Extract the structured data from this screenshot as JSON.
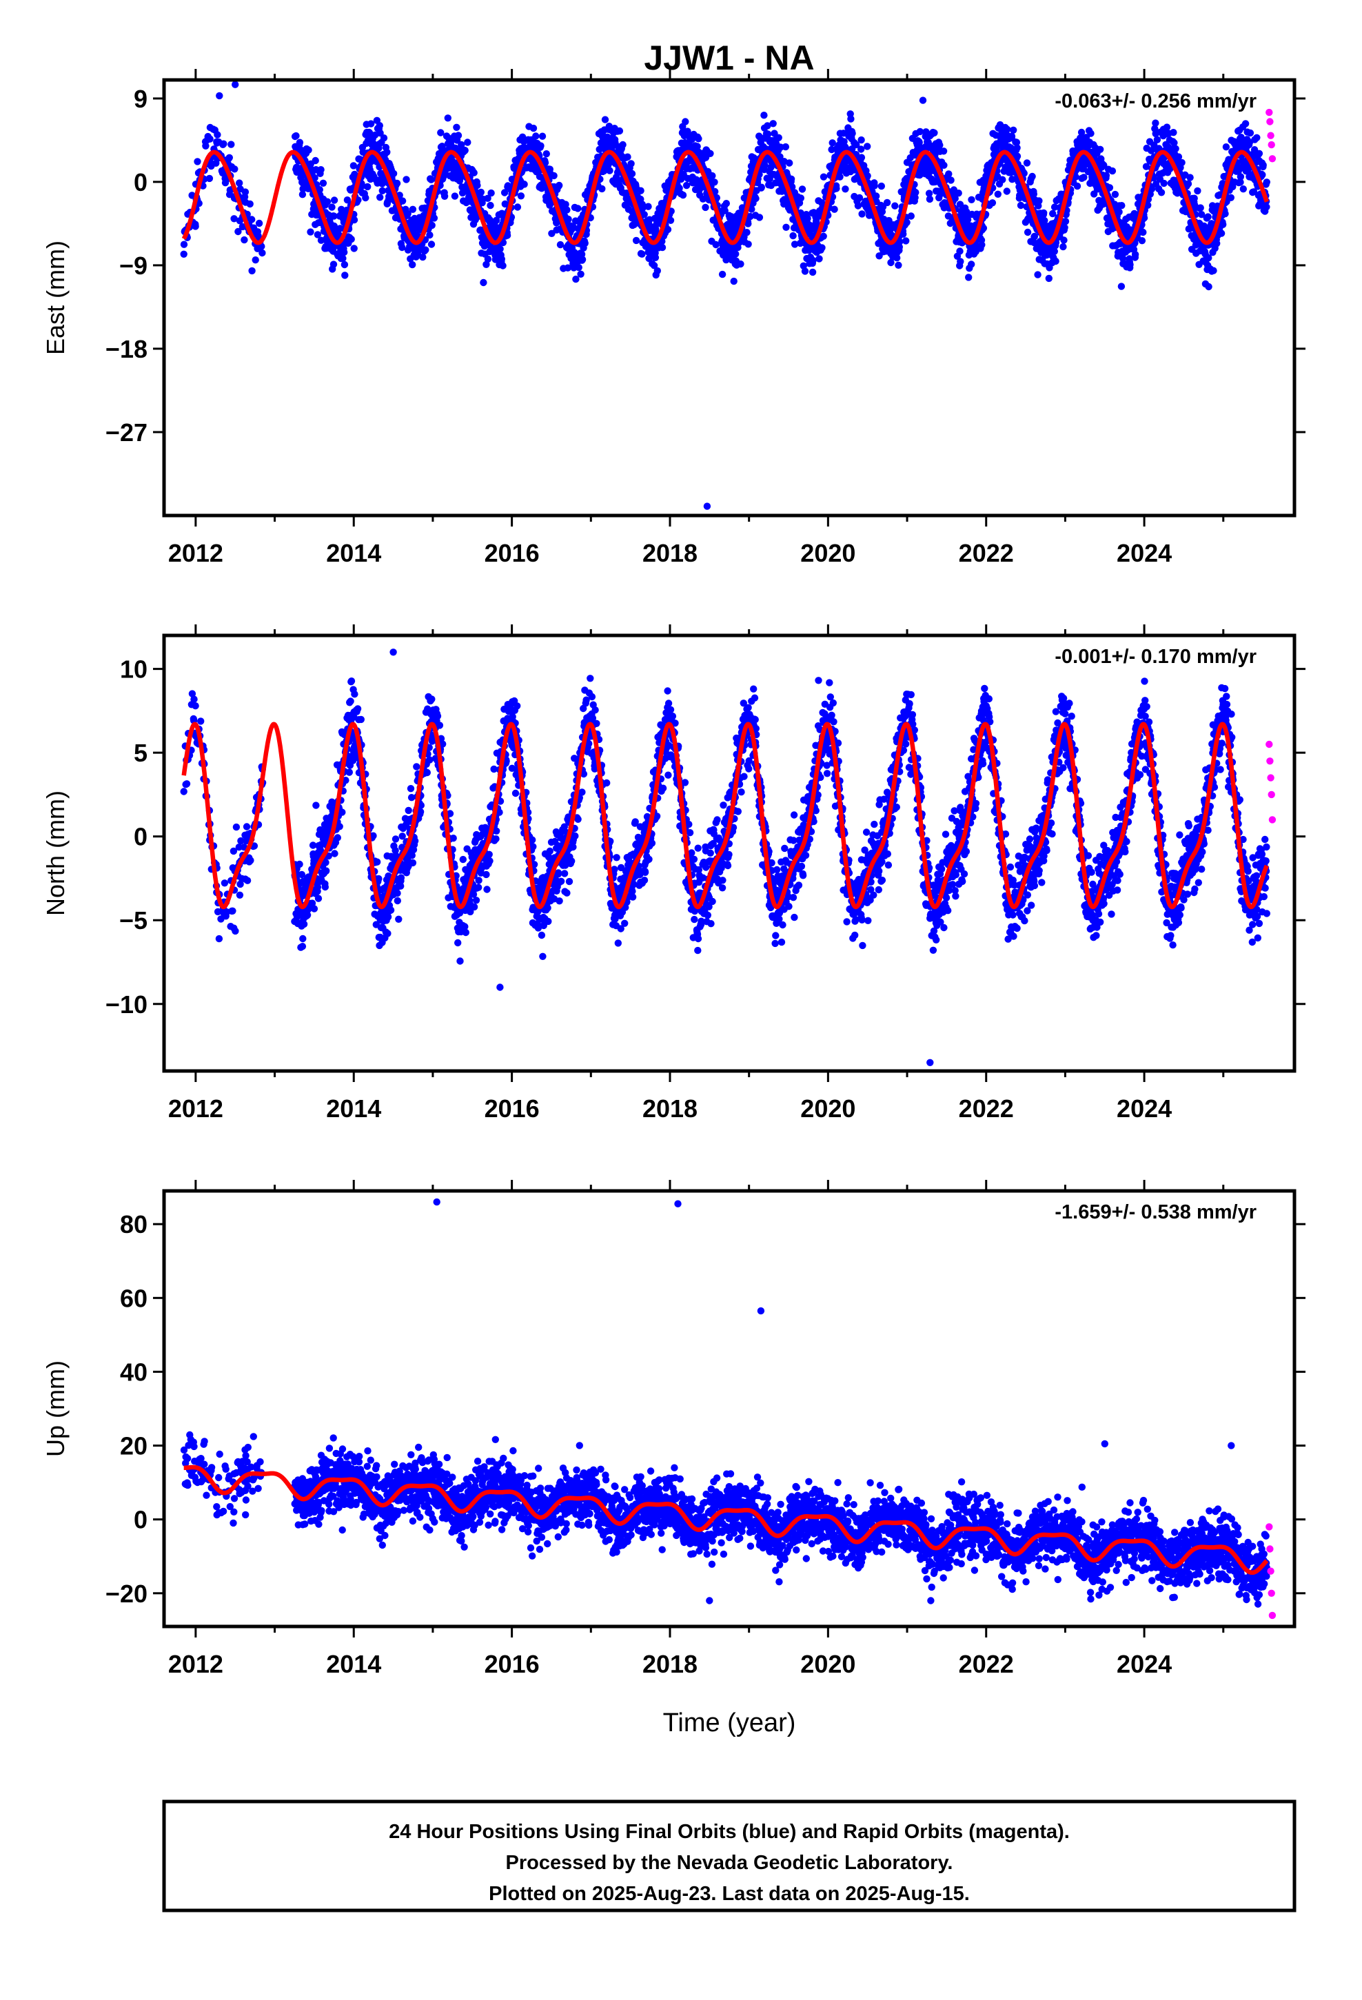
{
  "chart_data": {
    "type": "scatter",
    "title": "JJW1 - NA",
    "xlabel": "Time (year)",
    "xlim": [
      2011.6,
      2025.9
    ],
    "x_ticks": [
      "2012",
      "2014",
      "2016",
      "2018",
      "2020",
      "2022",
      "2024"
    ],
    "grid": false,
    "colors": {
      "final_orbits": "#0000ff",
      "rapid_orbits": "#ff00ff",
      "model": "#ff0000"
    },
    "panels": [
      {
        "ylabel": "East (mm)",
        "ylim": [
          -36,
          11
        ],
        "y_ticks": [
          "9",
          "0",
          "-9",
          "-18",
          "-27"
        ],
        "rate_text": "-0.063+/- 0.256 mm/yr",
        "model": {
          "offset": -1.5,
          "amp1": 4.8,
          "phase1": -0.1,
          "amp2": 0.5,
          "phase2": 0.2
        },
        "noise": 1.6,
        "rapid": [
          7.5,
          6.5,
          5.0,
          4.0,
          2.5
        ],
        "outliers": [
          [
            2018.47,
            -35.0
          ],
          [
            2012.5,
            10.5
          ],
          [
            2012.3,
            9.3
          ],
          [
            2021.2,
            8.8
          ]
        ]
      },
      {
        "ylabel": "North (mm)",
        "ylim": [
          -14,
          12
        ],
        "y_ticks": [
          "10",
          "5",
          "0",
          "-5",
          "-10"
        ],
        "rate_text": "-0.001+/- 0.170 mm/yr",
        "model": {
          "offset": 0.6,
          "amp1": 4.8,
          "phase1": 1.9,
          "amp2": 1.6,
          "phase2": 1.3
        },
        "noise": 1.1,
        "rapid": [
          5.5,
          4.5,
          3.5,
          2.5,
          1.0
        ],
        "outliers": [
          [
            2021.29,
            -13.5
          ],
          [
            2014.5,
            11.0
          ],
          [
            2015.85,
            -9.0
          ]
        ]
      },
      {
        "ylabel": "Up (mm)",
        "ylim": [
          -29,
          89
        ],
        "y_ticks": [
          "80",
          "60",
          "40",
          "20",
          "0",
          "-20"
        ],
        "rate_text": "-1.659+/- 0.538 mm/yr",
        "model": {
          "offset": 12.0,
          "slope": -1.659,
          "amp1": 3.0,
          "phase1": 2.4,
          "amp2": 1.0,
          "phase2": 0.3
        },
        "noise": 4.0,
        "rapid": [
          -2.0,
          -8.0,
          -14.0,
          -20.0,
          -26.0
        ],
        "outliers": [
          [
            2015.05,
            86.0
          ],
          [
            2018.1,
            85.5
          ],
          [
            2019.15,
            56.5
          ],
          [
            2023.5,
            20.5
          ],
          [
            2025.1,
            20.0
          ],
          [
            2018.5,
            -22.0
          ],
          [
            2021.3,
            -22.0
          ]
        ]
      }
    ],
    "data_start": 2011.85,
    "data_gap": [
      2012.85,
      2013.25
    ],
    "final_end": 2025.55,
    "rapid_start": 2025.58,
    "rapid_end": 2025.62
  },
  "footer": {
    "line1": "24 Hour Positions Using Final Orbits (blue) and Rapid Orbits (magenta).",
    "line2": "Processed by the Nevada Geodetic Laboratory.",
    "line3": "Plotted on 2025-Aug-23. Last data on 2025-Aug-15."
  }
}
